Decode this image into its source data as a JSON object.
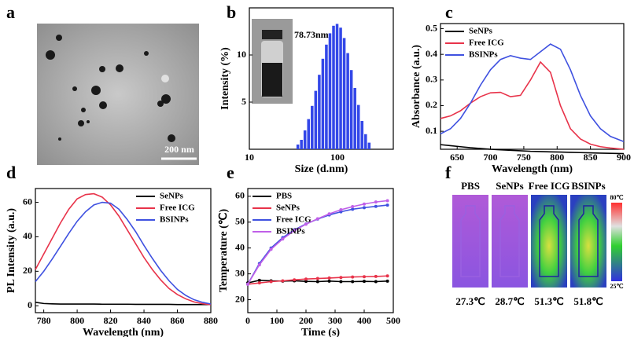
{
  "panel_labels": [
    "a",
    "b",
    "c",
    "d",
    "e",
    "f"
  ],
  "images": {
    "a": {
      "scale_bar": "200 nm"
    },
    "f": {
      "samples": [
        {
          "name": "PBS",
          "temperature": "27.3℃"
        },
        {
          "name": "SeNPs",
          "temperature": "28.7℃"
        },
        {
          "name": "Free ICG",
          "temperature": "51.3℃"
        },
        {
          "name": "BSINPs",
          "temperature": "51.8℃"
        }
      ],
      "colorbar_max": "80℃",
      "colorbar_min": "25℃"
    }
  },
  "chart_data": [
    {
      "type": "histogram",
      "xlabel": "Size (d.nm)",
      "ylabel": "Intensity (%)",
      "annotation": "78.73nm",
      "log_x": true,
      "color": "#3347e8",
      "bins": [
        33.9,
        37.2,
        40.8,
        44.8,
        49.2,
        54.0,
        59.3,
        65.1,
        71.4,
        78.4,
        86.1,
        94.5,
        103.7,
        113.8,
        124.9,
        137.1,
        150.5,
        165.2,
        181.3,
        199.1,
        218.5,
        239.8
      ],
      "counts": [
        0.5,
        1,
        2,
        3.2,
        4.6,
        6.2,
        7.9,
        9.6,
        11.1,
        12.3,
        13.1,
        13.3,
        12.9,
        11.8,
        10.2,
        8.4,
        6.5,
        4.7,
        3,
        1.6,
        0.7
      ],
      "xlim": [
        10,
        430
      ],
      "xticks": [
        10,
        100
      ],
      "ylim": [
        0,
        15
      ],
      "yticks": [
        5,
        10
      ]
    },
    {
      "type": "line",
      "xlabel": "Wavelength (nm)",
      "ylabel": "Absorbance (a.u.)",
      "legend": "upper left",
      "x": [
        625,
        640,
        655,
        670,
        685,
        700,
        715,
        730,
        745,
        760,
        775,
        790,
        805,
        820,
        835,
        850,
        865,
        880,
        900
      ],
      "series": [
        {
          "name": "SeNPs",
          "color": "#000000",
          "values": [
            0.048,
            0.044,
            0.04,
            0.036,
            0.033,
            0.03,
            0.028,
            0.026,
            0.024,
            0.022,
            0.021,
            0.02,
            0.019,
            0.018,
            0.017,
            0.016,
            0.015,
            0.014,
            0.013
          ]
        },
        {
          "name": "Free ICG",
          "color": "#e8334a",
          "values": [
            0.15,
            0.16,
            0.18,
            0.21,
            0.235,
            0.25,
            0.252,
            0.235,
            0.24,
            0.3,
            0.37,
            0.33,
            0.2,
            0.11,
            0.07,
            0.05,
            0.04,
            0.035,
            0.03
          ]
        },
        {
          "name": "BSINPs",
          "color": "#3f51e0",
          "values": [
            0.09,
            0.11,
            0.15,
            0.21,
            0.28,
            0.34,
            0.38,
            0.395,
            0.385,
            0.38,
            0.41,
            0.44,
            0.42,
            0.34,
            0.24,
            0.16,
            0.11,
            0.08,
            0.06
          ]
        }
      ],
      "xlim": [
        625,
        900
      ],
      "xticks": [
        650,
        700,
        750,
        800,
        850,
        900
      ],
      "ylim": [
        0.03,
        0.52
      ],
      "yticks": [
        0.1,
        0.2,
        0.3,
        0.4,
        0.5
      ]
    },
    {
      "type": "line",
      "xlabel": "Wavelength (nm)",
      "ylabel": "PL Intensity (a.u.)",
      "legend": "upper right",
      "x": [
        775,
        780,
        785,
        790,
        795,
        800,
        805,
        810,
        815,
        820,
        825,
        830,
        835,
        840,
        845,
        850,
        855,
        860,
        865,
        870,
        875,
        880
      ],
      "series": [
        {
          "name": "SeNPs",
          "color": "#000000",
          "values": [
            2,
            1.3,
            1.1,
            1,
            1,
            1,
            1,
            1,
            0.9,
            0.9,
            0.9,
            0.9,
            0.8,
            0.8,
            0.8,
            0.8,
            0.8,
            0.7,
            0.7,
            0.7,
            0.7,
            0.7
          ]
        },
        {
          "name": "Free ICG",
          "color": "#e8334a",
          "values": [
            21,
            30,
            39,
            48,
            56,
            62,
            64.5,
            65,
            63,
            58.5,
            52,
            44,
            36,
            28,
            21,
            15,
            10,
            6.5,
            4,
            2.2,
            1.2,
            0.6
          ]
        },
        {
          "name": "BSINPs",
          "color": "#3f51e0",
          "values": [
            14,
            20,
            27,
            34.5,
            42,
            49,
            54.5,
            58.5,
            60,
            59.5,
            56,
            50,
            43,
            35,
            27.5,
            20.5,
            14.5,
            9.5,
            6,
            3.5,
            2,
            1
          ]
        }
      ],
      "xlim": [
        775,
        880
      ],
      "xticks": [
        780,
        800,
        820,
        840,
        860,
        880
      ],
      "ylim": [
        -4,
        68
      ],
      "yticks": [
        0,
        20,
        40,
        60
      ]
    },
    {
      "type": "line",
      "xlabel": "Time (s)",
      "ylabel": "Temperature (℃)",
      "legend": "upper left",
      "markers": true,
      "x": [
        0,
        40,
        80,
        120,
        160,
        200,
        240,
        280,
        320,
        360,
        400,
        440,
        480
      ],
      "series": [
        {
          "name": "PBS",
          "color": "#000000",
          "values": [
            26.5,
            27.5,
            27.3,
            27.2,
            27.3,
            27.1,
            27,
            27.2,
            27,
            27,
            27.1,
            27,
            27.2
          ]
        },
        {
          "name": "SeNPs",
          "color": "#e8334a",
          "values": [
            26,
            26.5,
            27,
            27.3,
            27.7,
            28,
            28.2,
            28.4,
            28.6,
            28.8,
            28.9,
            29,
            29.2
          ]
        },
        {
          "name": "Free ICG",
          "color": "#3f51e0",
          "values": [
            26,
            34,
            40,
            44,
            47,
            49.3,
            51.2,
            52.8,
            54,
            55,
            55.6,
            56.1,
            56.6
          ]
        },
        {
          "name": "BSINPs",
          "color": "#c060e8",
          "values": [
            26,
            33.5,
            39.5,
            43.5,
            46.7,
            49.2,
            51.3,
            53.2,
            54.8,
            56,
            57,
            57.8,
            58.3
          ]
        }
      ],
      "xlim": [
        0,
        500
      ],
      "xticks": [
        0,
        100,
        200,
        300,
        400,
        500
      ],
      "ylim": [
        15,
        63
      ],
      "yticks": [
        20,
        30,
        40,
        50,
        60
      ]
    }
  ]
}
